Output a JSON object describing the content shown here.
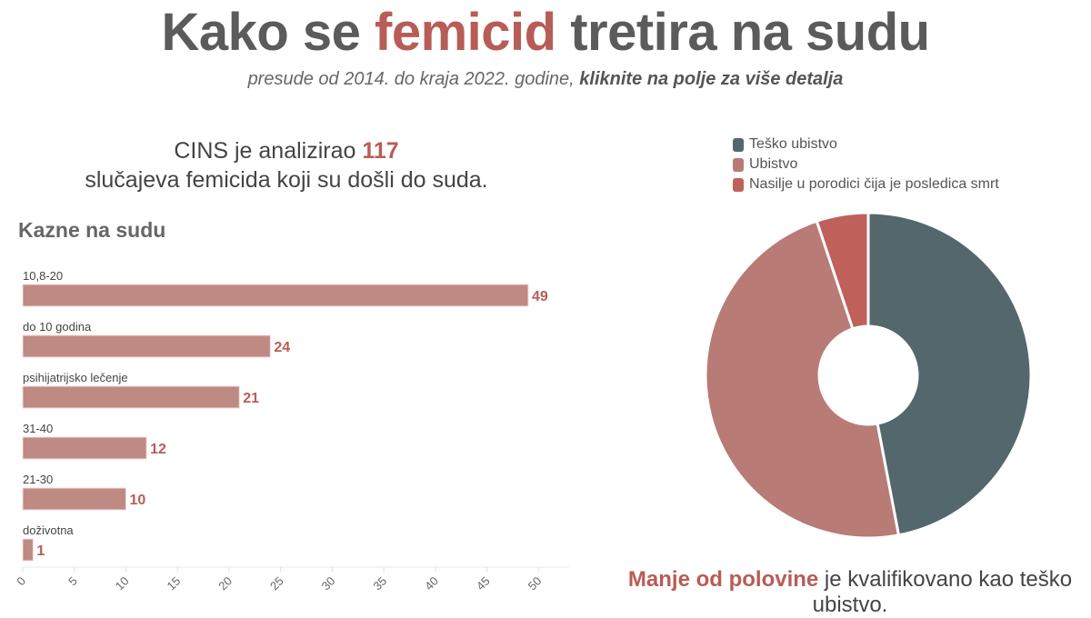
{
  "header": {
    "title_pre": "Kako se ",
    "title_accent": "femicid",
    "title_post": " tretira na sudu",
    "subtitle_pre": "presude od 2014. do kraja 2022. godine, ",
    "subtitle_bold": "kliknite na polje za više detalja"
  },
  "intro": {
    "pre": "CINS je analizirao ",
    "number": "117",
    "post": "slučajeva femicida koji su došli do suda."
  },
  "bottom": {
    "bold": "Manje od polovine",
    "rest": " je kvalifikovano kao teško ubistvo."
  },
  "colors": {
    "accent": "#b85c57",
    "bar": "#bf8a84",
    "tesko": "#54676c",
    "ubistvo": "#b87b76",
    "nasilje": "#c0605a"
  },
  "chart_data": [
    {
      "type": "bar",
      "orientation": "horizontal",
      "title": "Kazne na sudu",
      "categories": [
        "10,8-20",
        "do 10 godina",
        "psihijatrijsko lečenje",
        "31-40",
        "21-30",
        "doživotna"
      ],
      "values": [
        49,
        24,
        21,
        12,
        10,
        1
      ],
      "xlim": [
        0,
        52
      ],
      "xticks": [
        0,
        5,
        10,
        15,
        20,
        25,
        30,
        35,
        40,
        45,
        50
      ],
      "grid": false
    },
    {
      "type": "pie",
      "donut": true,
      "labels": [
        "Teško ubistvo",
        "Ubistvo",
        "Nasilje u porodici čija je posledica smrt"
      ],
      "values": [
        55,
        56,
        6
      ],
      "legend": "top"
    }
  ]
}
